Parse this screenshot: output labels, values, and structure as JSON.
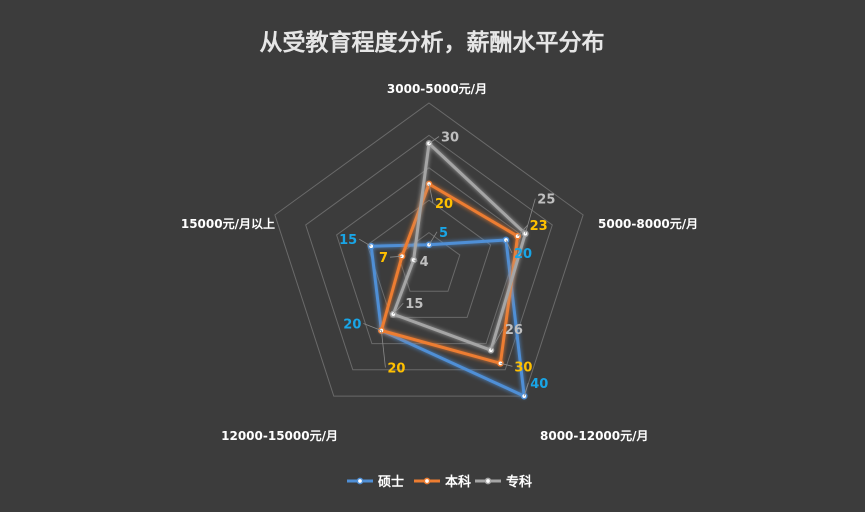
{
  "chart_data": {
    "type": "radar",
    "title": "从受教育程度分析，薪酬水平分布",
    "categories": [
      "3000-5000元/月",
      "5000-8000元/月",
      "8000-12000元/月",
      "12000-15000元/月",
      "15000元/月以上"
    ],
    "rmax": 40,
    "rings": 5,
    "series": [
      {
        "name": "硕士",
        "values": [
          5,
          20,
          40,
          20,
          15
        ],
        "color": "#4f8fd6",
        "label_color": "#19a5e6"
      },
      {
        "name": "本科",
        "values": [
          20,
          23,
          30,
          20,
          7
        ],
        "color": "#ed7d31",
        "label_color": "#ffc000"
      },
      {
        "name": "专科",
        "values": [
          30,
          25,
          26,
          15,
          4
        ],
        "color": "#a5a5a5",
        "label_color": "#bfbfbf"
      }
    ],
    "legend_position": "bottom"
  }
}
